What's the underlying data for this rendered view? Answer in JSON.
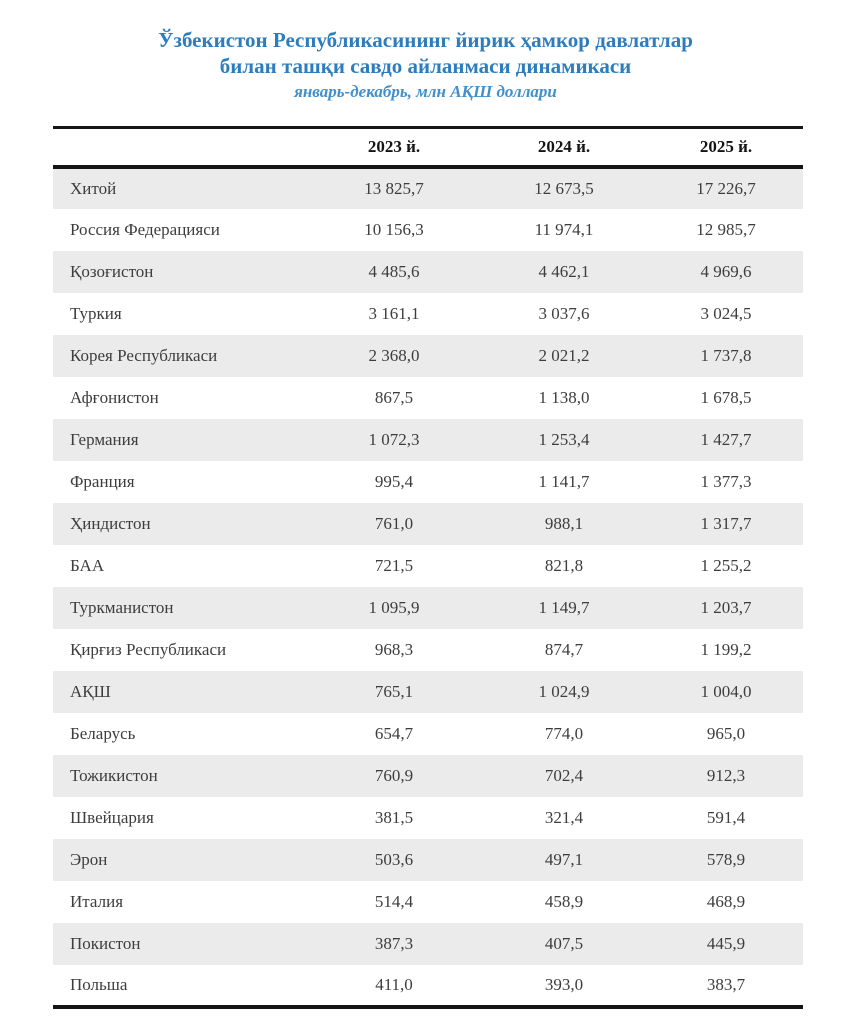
{
  "title": {
    "line1": "Ўзбекистон Республикасининг йирик ҳамкор давлатлар",
    "line2": "билан ташқи савдо айланмаси динамикаси",
    "subtitle": "январь-декабрь, млн АҚШ доллари"
  },
  "colors": {
    "title_blue": "#2d7cbe",
    "subtitle_blue": "#418fcb",
    "row_alt_bg": "#ebebeb",
    "border_dark": "#141414",
    "cell_text": "#3d3d3d"
  },
  "chart_data": {
    "type": "table",
    "title": "Ўзбекистон Республикасининг йирик ҳамкор давлатлар билан ташқи савдо айланмаси динамикаси",
    "subtitle": "январь-декабрь, млн АҚШ доллари",
    "columns": [
      "",
      "2023 й.",
      "2024 й.",
      "2025 й."
    ],
    "rows": [
      {
        "country": "Хитой",
        "values": [
          "13 825,7",
          "12 673,5",
          "17 226,7"
        ]
      },
      {
        "country": "Россия Федерацияси",
        "values": [
          "10 156,3",
          "11 974,1",
          "12 985,7"
        ]
      },
      {
        "country": "Қозоғистон",
        "values": [
          "4 485,6",
          "4 462,1",
          "4 969,6"
        ]
      },
      {
        "country": "Туркия",
        "values": [
          "3 161,1",
          "3 037,6",
          "3 024,5"
        ]
      },
      {
        "country": "Корея Республикаси",
        "values": [
          "2 368,0",
          "2 021,2",
          "1 737,8"
        ]
      },
      {
        "country": "Афғонистон",
        "values": [
          "867,5",
          "1 138,0",
          "1 678,5"
        ]
      },
      {
        "country": "Германия",
        "values": [
          "1 072,3",
          "1 253,4",
          "1 427,7"
        ]
      },
      {
        "country": "Франция",
        "values": [
          "995,4",
          "1 141,7",
          "1 377,3"
        ]
      },
      {
        "country": "Ҳиндистон",
        "values": [
          "761,0",
          "988,1",
          "1 317,7"
        ]
      },
      {
        "country": "БАА",
        "values": [
          "721,5",
          "821,8",
          "1 255,2"
        ]
      },
      {
        "country": "Туркманистон",
        "values": [
          "1 095,9",
          "1 149,7",
          "1 203,7"
        ]
      },
      {
        "country": "Қирғиз Республикаси",
        "values": [
          "968,3",
          "874,7",
          "1 199,2"
        ]
      },
      {
        "country": "АҚШ",
        "values": [
          "765,1",
          "1 024,9",
          "1 004,0"
        ]
      },
      {
        "country": "Беларусь",
        "values": [
          "654,7",
          "774,0",
          "965,0"
        ]
      },
      {
        "country": "Тожикистон",
        "values": [
          "760,9",
          "702,4",
          "912,3"
        ]
      },
      {
        "country": "Швейцария",
        "values": [
          "381,5",
          "321,4",
          "591,4"
        ]
      },
      {
        "country": "Эрон",
        "values": [
          "503,6",
          "497,1",
          "578,9"
        ]
      },
      {
        "country": "Италия",
        "values": [
          "514,4",
          "458,9",
          "468,9"
        ]
      },
      {
        "country": "Покистон",
        "values": [
          "387,3",
          "407,5",
          "445,9"
        ]
      },
      {
        "country": "Польша",
        "values": [
          "411,0",
          "393,0",
          "383,7"
        ]
      }
    ]
  }
}
